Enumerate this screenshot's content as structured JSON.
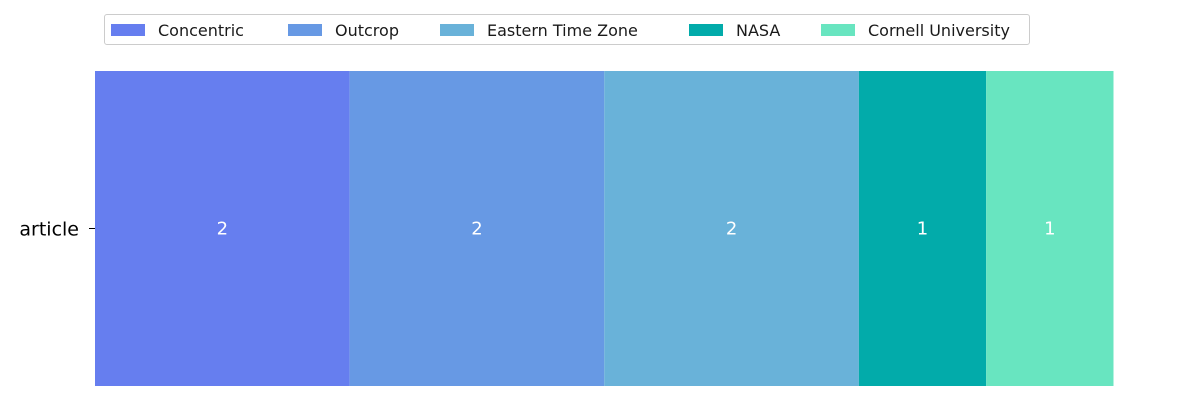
{
  "chart_data": {
    "type": "bar",
    "orientation": "horizontal",
    "stacked": true,
    "categories": [
      "article"
    ],
    "series": [
      {
        "name": "Concentric",
        "values": [
          2
        ],
        "color": "#667eef"
      },
      {
        "name": "Outcrop",
        "values": [
          2
        ],
        "color": "#6799e4"
      },
      {
        "name": "Eastern Time Zone",
        "values": [
          2
        ],
        "color": "#69b2d9"
      },
      {
        "name": "NASA",
        "values": [
          1
        ],
        "color": "#02abaa"
      },
      {
        "name": "Cornell University",
        "values": [
          1
        ],
        "color": "#68e5c0"
      }
    ],
    "xlim": [
      0,
      8
    ],
    "grid": false,
    "legend": "top"
  }
}
